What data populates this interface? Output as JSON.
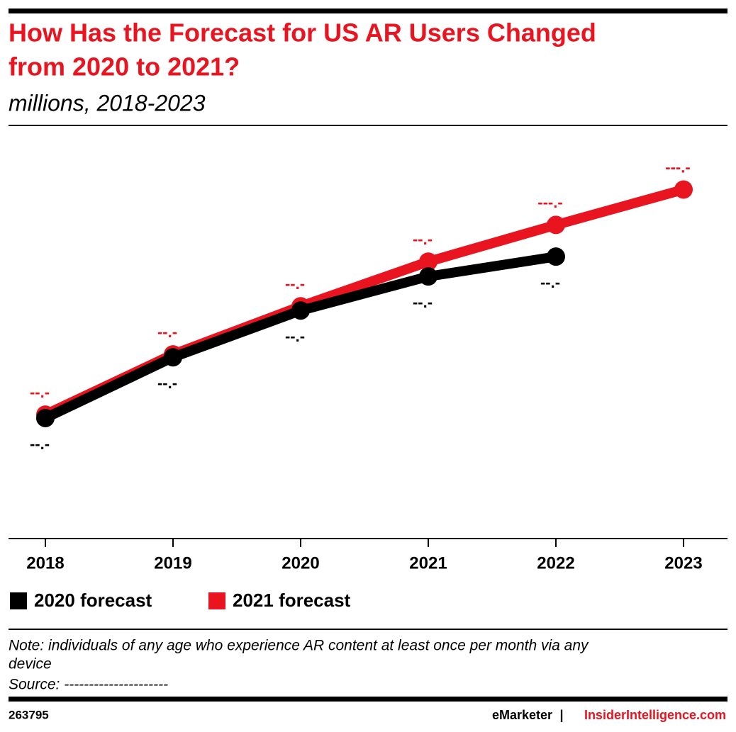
{
  "chart_data": {
    "type": "line",
    "title": [
      "How Has the Forecast for US AR Users Changed",
      "from 2020 to 2021?"
    ],
    "subtitle": "millions, 2018-2023",
    "categories": [
      "2018",
      "2019",
      "2020",
      "2021",
      "2022",
      "2023"
    ],
    "ylim": [
      0,
      140
    ],
    "series": [
      {
        "name": "2021 forecast",
        "color": "#e8141f",
        "values": [
          46.9,
          69.7,
          87.9,
          104.8,
          118.7,
          132.1
        ],
        "value_labels": [
          "--.-",
          "--.-",
          "--.-",
          "--.-",
          "---.-",
          "---.-"
        ]
      },
      {
        "name": "2020 forecast",
        "color": "#000000",
        "values": [
          45.6,
          68.6,
          86.3,
          99.2,
          106.7,
          null
        ],
        "value_labels": [
          "--.-",
          "--.-",
          "--.-",
          "--.-",
          "--.-",
          null
        ]
      }
    ],
    "legend_order": [
      1,
      0
    ],
    "note": [
      "Note: individuals of any age who experience AR content at least once per month via any",
      "device"
    ],
    "source": "Source: ---------------------",
    "chart_id": "263795",
    "brand": [
      "eMarketer",
      "InsiderIntelligence.com"
    ]
  }
}
